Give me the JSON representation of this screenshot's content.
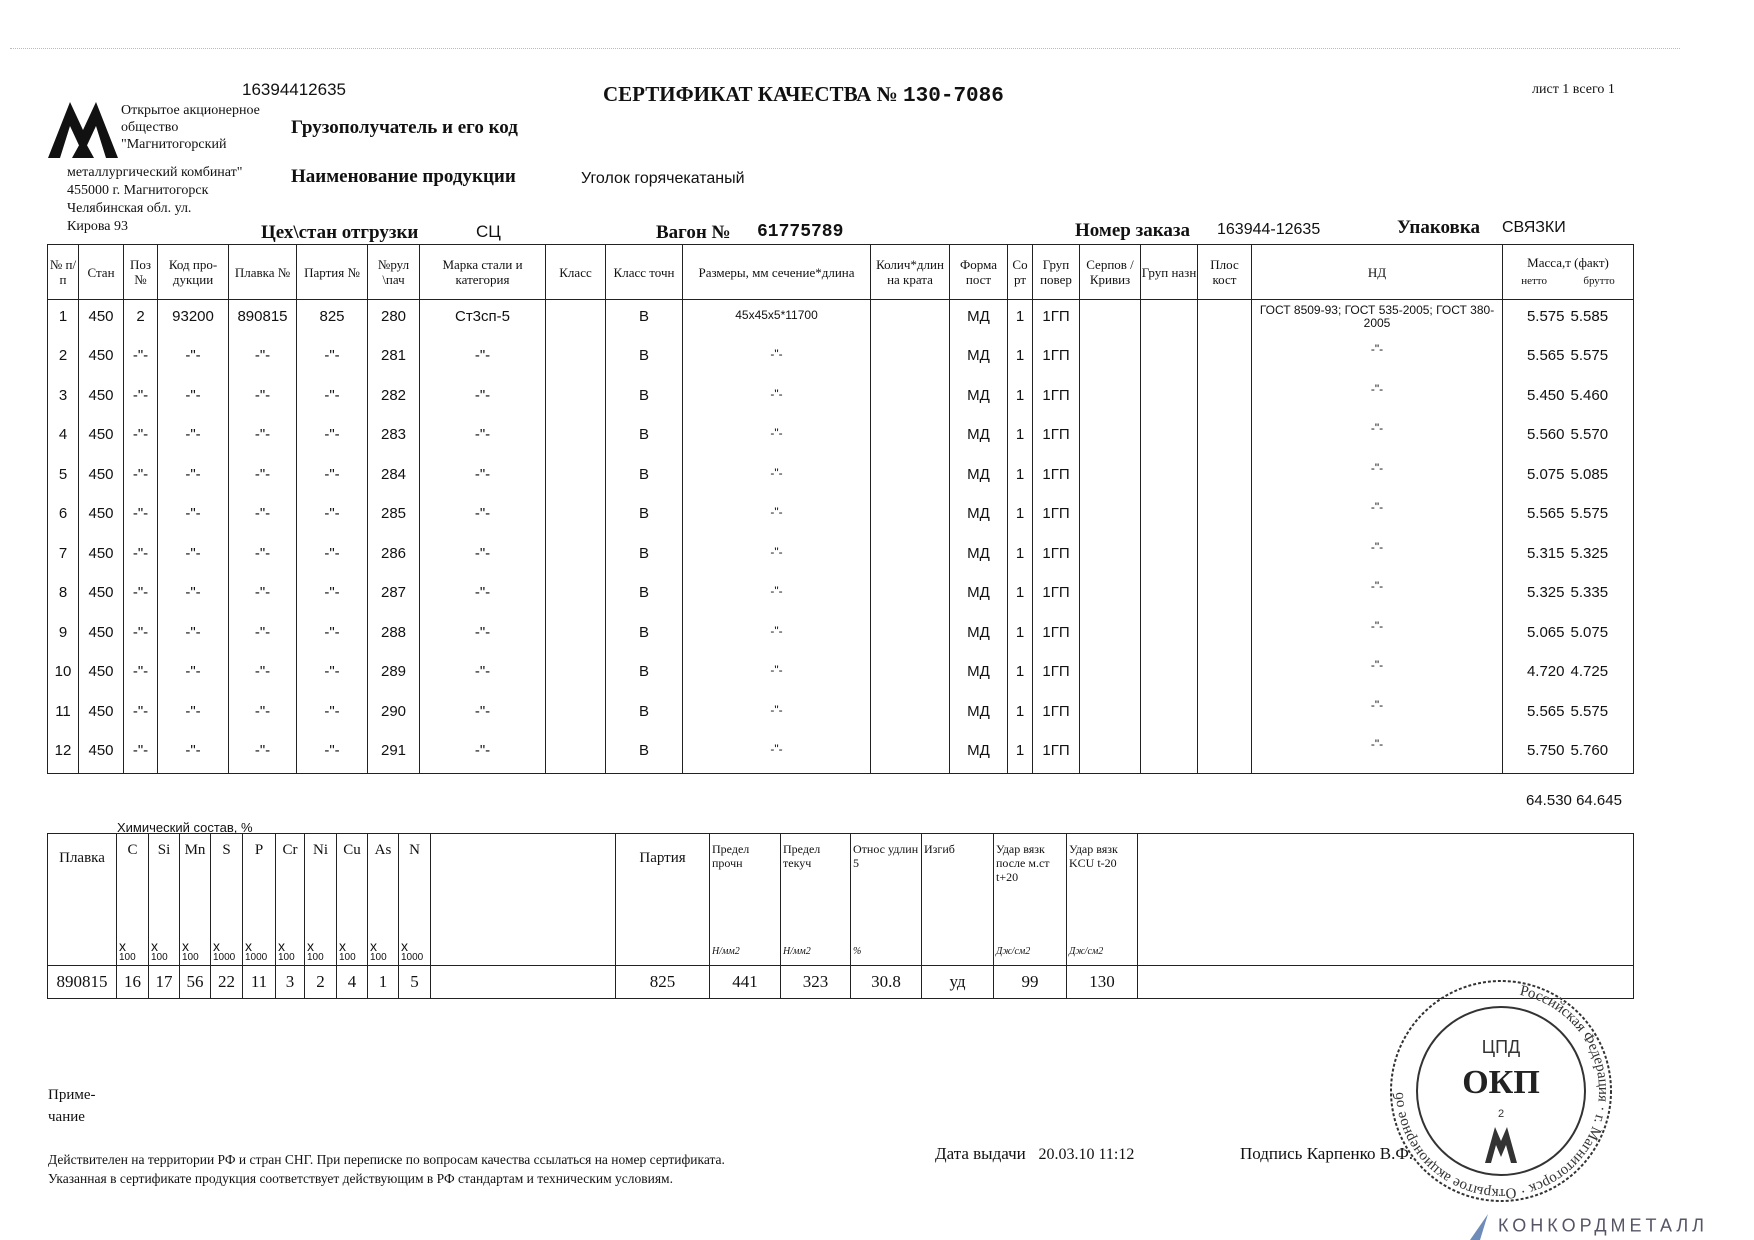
{
  "header": {
    "doc_code": "16394412635",
    "title": "СЕРТИФИКАТ КАЧЕСТВА",
    "number_label": "№",
    "number": "130-7086",
    "sheet": "лист 1 всего 1",
    "company_lines": [
      "Открытое акционерное",
      "общество",
      "\"Магнитогорский",
      "металлургический комбинат\"",
      "455000 г. Магнитогорск",
      "Челябинская обл.  ул.",
      "Кирова 93"
    ],
    "consignee_label": "Грузополучатель и его код",
    "product_label": "Наименование продукции",
    "product_value": "Уголок горячекатаный",
    "shop_label": "Цех\\стан отгрузки",
    "shop_value": "СЦ",
    "wagon_label": "Вагон №",
    "wagon_value": "61775789",
    "order_label": "Номер заказа",
    "order_value": "163944-12635",
    "packing_label": "Упаковка",
    "packing_value": "СВЯЗКИ"
  },
  "main_table": {
    "columns": [
      "№ п/п",
      "Стан",
      "Поз №",
      "Код про-дукции",
      "Плавка №",
      "Партия №",
      "№рул \\пач",
      "Марка стали и категория",
      "Класс",
      "Класс точн",
      "Размеры, мм сечение*длина",
      "Колич*длин на крата",
      "Форма пост",
      "Со рт",
      "Груп повер",
      "Серпов /Кривиз",
      "Груп назн",
      "Плос кост",
      "НД",
      "Масса,т (факт)"
    ],
    "mass_sub": [
      "нетто",
      "брутто"
    ],
    "rows": [
      [
        "1",
        "450",
        "2",
        "93200",
        "890815",
        "825",
        "280",
        "Ст3сп-5",
        "",
        "В",
        "45x45x5*11700",
        "",
        "МД",
        "1",
        "1ГП",
        "",
        "",
        "",
        "ГОСТ 8509-93; ГОСТ 535-2005; ГОСТ 380-2005",
        "5.575",
        "5.585"
      ],
      [
        "2",
        "450",
        "-\"-",
        "-\"-",
        "-\"-",
        "-\"-",
        "281",
        "-\"-",
        "",
        "В",
        "-\"-",
        "",
        "МД",
        "1",
        "1ГП",
        "",
        "",
        "",
        "-\"-",
        "5.565",
        "5.575"
      ],
      [
        "3",
        "450",
        "-\"-",
        "-\"-",
        "-\"-",
        "-\"-",
        "282",
        "-\"-",
        "",
        "В",
        "-\"-",
        "",
        "МД",
        "1",
        "1ГП",
        "",
        "",
        "",
        "-\"-",
        "5.450",
        "5.460"
      ],
      [
        "4",
        "450",
        "-\"-",
        "-\"-",
        "-\"-",
        "-\"-",
        "283",
        "-\"-",
        "",
        "В",
        "-\"-",
        "",
        "МД",
        "1",
        "1ГП",
        "",
        "",
        "",
        "-\"-",
        "5.560",
        "5.570"
      ],
      [
        "5",
        "450",
        "-\"-",
        "-\"-",
        "-\"-",
        "-\"-",
        "284",
        "-\"-",
        "",
        "В",
        "-\"-",
        "",
        "МД",
        "1",
        "1ГП",
        "",
        "",
        "",
        "-\"-",
        "5.075",
        "5.085"
      ],
      [
        "6",
        "450",
        "-\"-",
        "-\"-",
        "-\"-",
        "-\"-",
        "285",
        "-\"-",
        "",
        "В",
        "-\"-",
        "",
        "МД",
        "1",
        "1ГП",
        "",
        "",
        "",
        "-\"-",
        "5.565",
        "5.575"
      ],
      [
        "7",
        "450",
        "-\"-",
        "-\"-",
        "-\"-",
        "-\"-",
        "286",
        "-\"-",
        "",
        "В",
        "-\"-",
        "",
        "МД",
        "1",
        "1ГП",
        "",
        "",
        "",
        "-\"-",
        "5.315",
        "5.325"
      ],
      [
        "8",
        "450",
        "-\"-",
        "-\"-",
        "-\"-",
        "-\"-",
        "287",
        "-\"-",
        "",
        "В",
        "-\"-",
        "",
        "МД",
        "1",
        "1ГП",
        "",
        "",
        "",
        "-\"-",
        "5.325",
        "5.335"
      ],
      [
        "9",
        "450",
        "-\"-",
        "-\"-",
        "-\"-",
        "-\"-",
        "288",
        "-\"-",
        "",
        "В",
        "-\"-",
        "",
        "МД",
        "1",
        "1ГП",
        "",
        "",
        "",
        "-\"-",
        "5.065",
        "5.075"
      ],
      [
        "10",
        "450",
        "-\"-",
        "-\"-",
        "-\"-",
        "-\"-",
        "289",
        "-\"-",
        "",
        "В",
        "-\"-",
        "",
        "МД",
        "1",
        "1ГП",
        "",
        "",
        "",
        "-\"-",
        "4.720",
        "4.725"
      ],
      [
        "11",
        "450",
        "-\"-",
        "-\"-",
        "-\"-",
        "-\"-",
        "290",
        "-\"-",
        "",
        "В",
        "-\"-",
        "",
        "МД",
        "1",
        "1ГП",
        "",
        "",
        "",
        "-\"-",
        "5.565",
        "5.575"
      ],
      [
        "12",
        "450",
        "-\"-",
        "-\"-",
        "-\"-",
        "-\"-",
        "291",
        "-\"-",
        "",
        "В",
        "-\"-",
        "",
        "МД",
        "1",
        "1ГП",
        "",
        "",
        "",
        "-\"-",
        "5.750",
        "5.760"
      ]
    ],
    "total_netto": "64.530",
    "total_brutto": "64.645"
  },
  "chem_table": {
    "caption": "Химический состав, %",
    "heat_label": "Плавка",
    "elements": [
      {
        "el": "C",
        "mult": "100"
      },
      {
        "el": "Si",
        "mult": "100"
      },
      {
        "el": "Mn",
        "mult": "100"
      },
      {
        "el": "S",
        "mult": "1000"
      },
      {
        "el": "P",
        "mult": "1000"
      },
      {
        "el": "Cr",
        "mult": "100"
      },
      {
        "el": "Ni",
        "mult": "100"
      },
      {
        "el": "Cu",
        "mult": "100"
      },
      {
        "el": "As",
        "mult": "100"
      },
      {
        "el": "N",
        "mult": "1000"
      }
    ],
    "x_label": "x",
    "batch_label": "Партия",
    "mech_columns": [
      {
        "label": "Предел прочн",
        "unit": "Н/мм2"
      },
      {
        "label": "Предел текуч",
        "unit": "Н/мм2"
      },
      {
        "label": "Относ удлин 5",
        "unit": "%"
      },
      {
        "label": "Изгиб",
        "unit": ""
      },
      {
        "label": "Удар вязк после м.ст t+20",
        "unit": "Дж/см2"
      },
      {
        "label": "Удар вязк KCU t-20",
        "unit": "Дж/см2"
      }
    ],
    "row": {
      "heat": "890815",
      "values": [
        "16",
        "17",
        "56",
        "22",
        "11",
        "3",
        "2",
        "4",
        "1",
        "5"
      ],
      "batch": "825",
      "mech": [
        "441",
        "323",
        "30.8",
        "уд",
        "99",
        "130"
      ]
    }
  },
  "footer": {
    "note_label": "Приме-\nчание",
    "validity_line1": "Действителен на территории РФ и стран СНГ. При переписке по вопросам качества ссылаться на номер сертификата.",
    "validity_line2": "Указанная в сертификате продукция соответствует действующим в РФ стандартам и техническим условиям.",
    "issue_label": "Дата выдачи",
    "issue_date": "20.03.10 11:12",
    "signature_label": "Подпись",
    "signature_name": "Карпенко В.Ф.",
    "stamp_text": [
      "Российская Федерация",
      "г. Магнитогорск",
      "Открытое акционерное общество",
      "Магнитогорский металлургический комбинат",
      "ЦПД",
      "ОКП",
      "2"
    ],
    "watermark": "КОНКОРДМЕТАЛЛ"
  }
}
